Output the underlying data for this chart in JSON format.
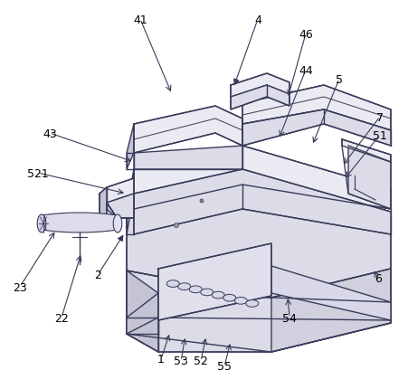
{
  "bg_color": "#ffffff",
  "line_color": "#3a3a5a",
  "figsize": [
    4.51,
    4.31
  ],
  "dpi": 100,
  "annotations": [
    [
      "41",
      155,
      22,
      190,
      105,
      false
    ],
    [
      "4",
      285,
      22,
      258,
      98,
      true
    ],
    [
      "46",
      338,
      38,
      318,
      110,
      false
    ],
    [
      "44",
      338,
      78,
      308,
      155,
      false
    ],
    [
      "5",
      375,
      88,
      345,
      162,
      false
    ],
    [
      "7",
      420,
      130,
      378,
      185,
      false
    ],
    [
      "51",
      420,
      150,
      380,
      200,
      false
    ],
    [
      "43",
      55,
      148,
      148,
      180,
      false
    ],
    [
      "521",
      42,
      192,
      140,
      215,
      false
    ],
    [
      "23",
      22,
      318,
      62,
      255,
      false
    ],
    [
      "22",
      68,
      352,
      90,
      280,
      false
    ],
    [
      "2",
      108,
      305,
      138,
      258,
      true
    ],
    [
      "1",
      178,
      398,
      188,
      368,
      false
    ],
    [
      "53",
      200,
      400,
      205,
      372,
      false
    ],
    [
      "52",
      222,
      400,
      228,
      372,
      false
    ],
    [
      "55",
      248,
      406,
      255,
      378,
      false
    ],
    [
      "54",
      320,
      352,
      318,
      328,
      false
    ],
    [
      "6",
      418,
      308,
      412,
      298,
      false
    ]
  ]
}
